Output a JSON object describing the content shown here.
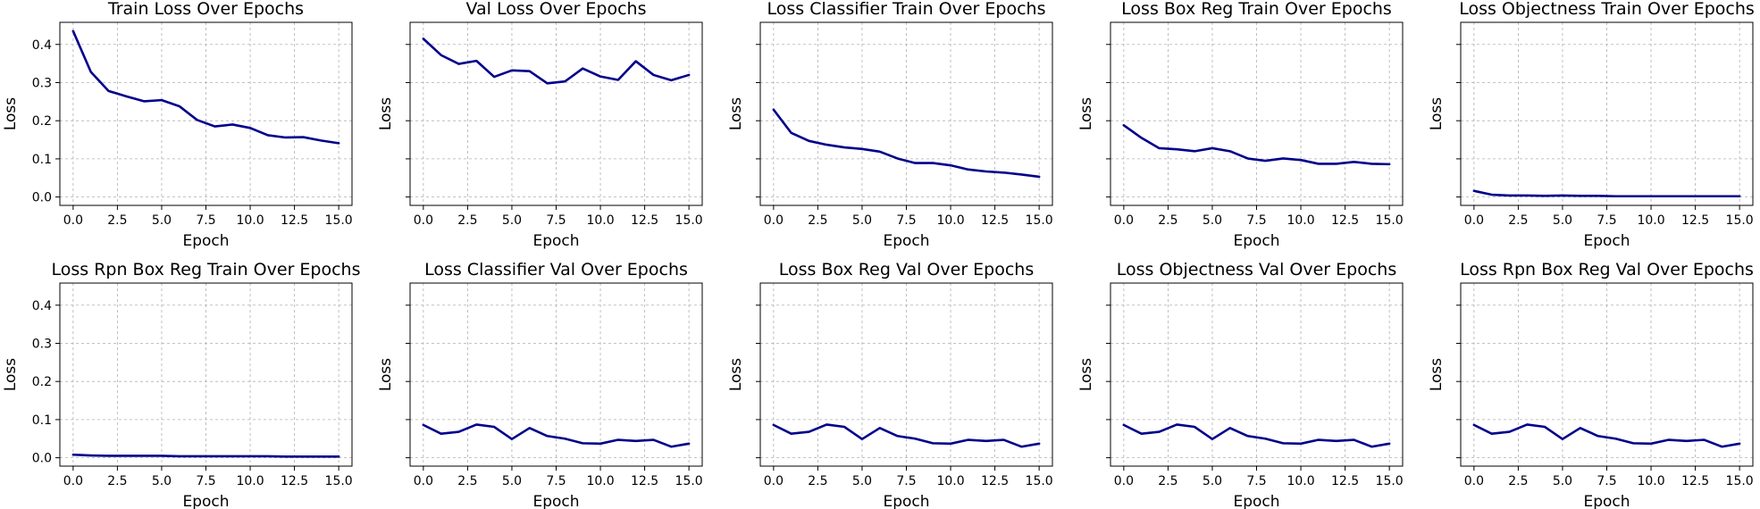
{
  "colors": {
    "line": "#00008b"
  },
  "axes_common": {
    "xlabel": "Epoch",
    "ylabel": "Loss",
    "xlim": [
      -0.75,
      15.75
    ],
    "ylim": [
      -0.022,
      0.458
    ],
    "xticks": [
      0,
      2.5,
      5,
      7.5,
      10,
      12.5,
      15
    ],
    "xtick_labels": [
      "0.0",
      "2.5",
      "5.0",
      "7.5",
      "10.0",
      "12.5",
      "15.0"
    ],
    "yticks": [
      0.0,
      0.1,
      0.2,
      0.3,
      0.4
    ],
    "ytick_labels": [
      "0.0",
      "0.1",
      "0.2",
      "0.3",
      "0.4"
    ],
    "grid": true,
    "sharey": "row"
  },
  "chart_data": [
    {
      "type": "line",
      "title": "Train Loss Over Epochs",
      "xlabel": "Epoch",
      "ylabel": "Loss",
      "x": [
        0,
        1,
        2,
        3,
        4,
        5,
        6,
        7,
        8,
        9,
        10,
        11,
        12,
        13,
        14,
        15
      ],
      "series": [
        {
          "values": [
            0.435,
            0.328,
            0.278,
            0.264,
            0.251,
            0.254,
            0.238,
            0.202,
            0.185,
            0.19,
            0.181,
            0.162,
            0.156,
            0.157,
            0.148,
            0.141
          ]
        }
      ]
    },
    {
      "type": "line",
      "title": "Val Loss Over Epochs",
      "xlabel": "Epoch",
      "ylabel": "Loss",
      "x": [
        0,
        1,
        2,
        3,
        4,
        5,
        6,
        7,
        8,
        9,
        10,
        11,
        12,
        13,
        14,
        15
      ],
      "series": [
        {
          "values": [
            0.415,
            0.372,
            0.349,
            0.357,
            0.315,
            0.332,
            0.33,
            0.298,
            0.303,
            0.337,
            0.316,
            0.307,
            0.356,
            0.32,
            0.306,
            0.32
          ]
        }
      ]
    },
    {
      "type": "line",
      "title": "Loss Classifier Train Over Epochs",
      "xlabel": "Epoch",
      "ylabel": "Loss",
      "x": [
        0,
        1,
        2,
        3,
        4,
        5,
        6,
        7,
        8,
        9,
        10,
        11,
        12,
        13,
        14,
        15
      ],
      "series": [
        {
          "values": [
            0.229,
            0.168,
            0.147,
            0.137,
            0.13,
            0.126,
            0.119,
            0.101,
            0.089,
            0.089,
            0.083,
            0.072,
            0.067,
            0.064,
            0.059,
            0.053
          ]
        }
      ]
    },
    {
      "type": "line",
      "title": "Loss Box Reg Train Over Epochs",
      "xlabel": "Epoch",
      "ylabel": "Loss",
      "x": [
        0,
        1,
        2,
        3,
        4,
        5,
        6,
        7,
        8,
        9,
        10,
        11,
        12,
        13,
        14,
        15
      ],
      "series": [
        {
          "values": [
            0.188,
            0.155,
            0.128,
            0.125,
            0.12,
            0.128,
            0.12,
            0.101,
            0.095,
            0.101,
            0.097,
            0.087,
            0.087,
            0.092,
            0.087,
            0.086
          ]
        }
      ]
    },
    {
      "type": "line",
      "title": "Loss Objectness Train Over Epochs",
      "xlabel": "Epoch",
      "ylabel": "Loss",
      "x": [
        0,
        1,
        2,
        3,
        4,
        5,
        6,
        7,
        8,
        9,
        10,
        11,
        12,
        13,
        14,
        15
      ],
      "series": [
        {
          "values": [
            0.016,
            0.006,
            0.004,
            0.004,
            0.003,
            0.004,
            0.003,
            0.003,
            0.002,
            0.002,
            0.002,
            0.002,
            0.002,
            0.002,
            0.002,
            0.002
          ]
        }
      ]
    },
    {
      "type": "line",
      "title": "Loss Rpn Box Reg Train Over Epochs",
      "xlabel": "Epoch",
      "ylabel": "Loss",
      "x": [
        0,
        1,
        2,
        3,
        4,
        5,
        6,
        7,
        8,
        9,
        10,
        11,
        12,
        13,
        14,
        15
      ],
      "series": [
        {
          "values": [
            0.008,
            0.006,
            0.005,
            0.005,
            0.005,
            0.005,
            0.004,
            0.004,
            0.004,
            0.004,
            0.004,
            0.004,
            0.003,
            0.003,
            0.003,
            0.003
          ]
        }
      ]
    },
    {
      "type": "line",
      "title": "Loss Classifier Val Over Epochs",
      "xlabel": "Epoch",
      "ylabel": "Loss",
      "x": [
        0,
        1,
        2,
        3,
        4,
        5,
        6,
        7,
        8,
        9,
        10,
        11,
        12,
        13,
        14,
        15
      ],
      "series": [
        {
          "values": [
            0.086,
            0.063,
            0.068,
            0.087,
            0.081,
            0.049,
            0.078,
            0.057,
            0.05,
            0.038,
            0.037,
            0.047,
            0.044,
            0.047,
            0.029,
            0.037
          ]
        }
      ]
    },
    {
      "type": "line",
      "title": "Loss Box Reg Val Over Epochs",
      "xlabel": "Epoch",
      "ylabel": "Loss",
      "x": [
        0,
        1,
        2,
        3,
        4,
        5,
        6,
        7,
        8,
        9,
        10,
        11,
        12,
        13,
        14,
        15
      ],
      "series": [
        {
          "values": [
            0.086,
            0.063,
            0.068,
            0.087,
            0.081,
            0.049,
            0.078,
            0.057,
            0.05,
            0.038,
            0.037,
            0.047,
            0.044,
            0.047,
            0.029,
            0.037
          ]
        }
      ]
    },
    {
      "type": "line",
      "title": "Loss Objectness Val Over Epochs",
      "xlabel": "Epoch",
      "ylabel": "Loss",
      "x": [
        0,
        1,
        2,
        3,
        4,
        5,
        6,
        7,
        8,
        9,
        10,
        11,
        12,
        13,
        14,
        15
      ],
      "series": [
        {
          "values": [
            0.086,
            0.063,
            0.068,
            0.087,
            0.081,
            0.049,
            0.078,
            0.057,
            0.05,
            0.038,
            0.037,
            0.047,
            0.044,
            0.047,
            0.029,
            0.037
          ]
        }
      ]
    },
    {
      "type": "line",
      "title": "Loss Rpn Box Reg Val Over Epochs",
      "xlabel": "Epoch",
      "ylabel": "Loss",
      "x": [
        0,
        1,
        2,
        3,
        4,
        5,
        6,
        7,
        8,
        9,
        10,
        11,
        12,
        13,
        14,
        15
      ],
      "series": [
        {
          "values": [
            0.086,
            0.063,
            0.068,
            0.087,
            0.081,
            0.049,
            0.078,
            0.057,
            0.05,
            0.038,
            0.037,
            0.047,
            0.044,
            0.047,
            0.029,
            0.037
          ]
        }
      ]
    }
  ]
}
